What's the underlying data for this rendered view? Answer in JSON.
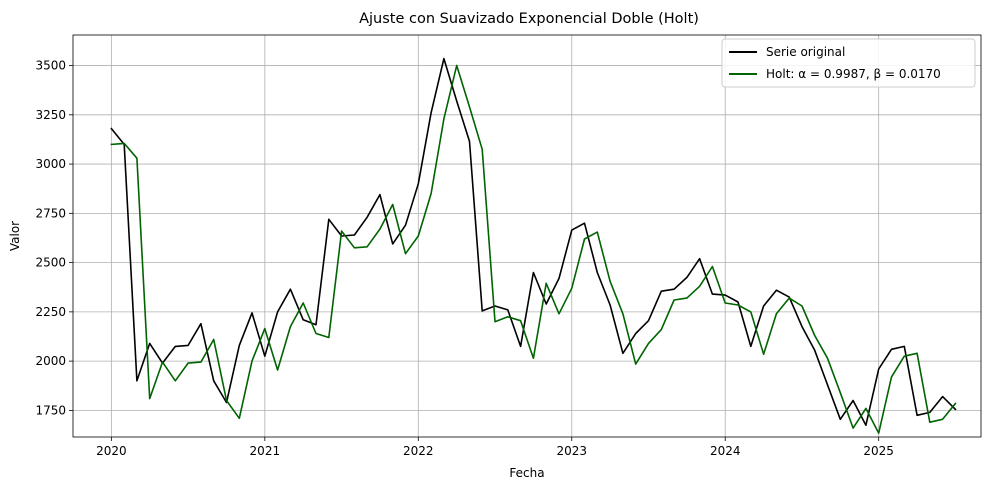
{
  "chart_data": {
    "type": "line",
    "title": "Ajuste con Suavizado Exponencial Doble (Holt)",
    "xlabel": "Fecha",
    "ylabel": "Valor",
    "xlim": [
      "2019-10-01",
      "2025-09-01"
    ],
    "ylim": [
      1615,
      3655
    ],
    "x_ticks": [
      "2020",
      "2021",
      "2022",
      "2023",
      "2024",
      "2025"
    ],
    "y_ticks": [
      1750,
      2000,
      2250,
      2500,
      2750,
      3000,
      3250,
      3500
    ],
    "grid": true,
    "legend_position": "top-right",
    "x": [
      "2020-01",
      "2020-02",
      "2020-03",
      "2020-04",
      "2020-05",
      "2020-06",
      "2020-07",
      "2020-08",
      "2020-09",
      "2020-10",
      "2020-11",
      "2020-12",
      "2021-01",
      "2021-02",
      "2021-03",
      "2021-04",
      "2021-05",
      "2021-06",
      "2021-07",
      "2021-08",
      "2021-09",
      "2021-10",
      "2021-11",
      "2021-12",
      "2022-01",
      "2022-02",
      "2022-03",
      "2022-04",
      "2022-05",
      "2022-06",
      "2022-07",
      "2022-08",
      "2022-09",
      "2022-10",
      "2022-11",
      "2022-12",
      "2023-01",
      "2023-02",
      "2023-03",
      "2023-04",
      "2023-05",
      "2023-06",
      "2023-07",
      "2023-08",
      "2023-09",
      "2023-10",
      "2023-11",
      "2023-12",
      "2024-01",
      "2024-02",
      "2024-03",
      "2024-04",
      "2024-05",
      "2024-06",
      "2024-07",
      "2024-08",
      "2024-09",
      "2024-10",
      "2024-11",
      "2024-12",
      "2025-01",
      "2025-02",
      "2025-03",
      "2025-04",
      "2025-05",
      "2025-06",
      "2025-07"
    ],
    "series": [
      {
        "name": "Serie original",
        "color": "#000000",
        "values": [
          3180,
          3100,
          1900,
          2090,
          1990,
          2075,
          2080,
          2190,
          1900,
          1790,
          2080,
          2245,
          2025,
          2250,
          2365,
          2210,
          2185,
          2720,
          2635,
          2640,
          2730,
          2845,
          2595,
          2690,
          2900,
          3260,
          3535,
          3320,
          3115,
          2255,
          2280,
          2260,
          2075,
          2450,
          2290,
          2420,
          2665,
          2700,
          2450,
          2285,
          2040,
          2140,
          2205,
          2355,
          2365,
          2425,
          2520,
          2340,
          2335,
          2300,
          2075,
          2280,
          2360,
          2325,
          2175,
          2055,
          1880,
          1705,
          1800,
          1675,
          1960,
          2060,
          2075,
          1725,
          1740,
          1820,
          1755
        ]
      },
      {
        "name": "Holt: α = 0.9987, β = 0.0170",
        "color": "#006400",
        "values": [
          3100,
          3105,
          3030,
          1810,
          1995,
          1900,
          1990,
          1995,
          2110,
          1800,
          1710,
          2000,
          2165,
          1955,
          2175,
          2295,
          2140,
          2120,
          2660,
          2575,
          2580,
          2670,
          2795,
          2545,
          2635,
          2850,
          3230,
          3500,
          3290,
          3075,
          2200,
          2225,
          2205,
          2015,
          2395,
          2240,
          2370,
          2620,
          2655,
          2405,
          2240,
          1985,
          2090,
          2160,
          2310,
          2320,
          2380,
          2480,
          2295,
          2285,
          2250,
          2035,
          2240,
          2320,
          2280,
          2130,
          2015,
          1840,
          1660,
          1760,
          1635,
          1920,
          2025,
          2040,
          1690,
          1705,
          1785
        ]
      }
    ]
  }
}
